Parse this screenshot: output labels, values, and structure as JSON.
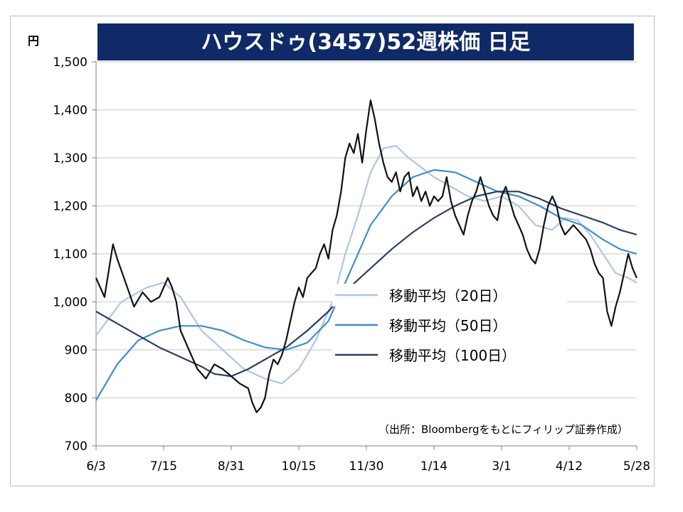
{
  "chart_data": {
    "type": "line",
    "title": "ハウスドゥ(3457)52週株価 日足",
    "y_unit": "円",
    "ylim": [
      700,
      1500
    ],
    "y_ticks": [
      {
        "value": 700,
        "label": "700"
      },
      {
        "value": 800,
        "label": "800"
      },
      {
        "value": 900,
        "label": "900"
      },
      {
        "value": 1000,
        "label": "1,000"
      },
      {
        "value": 1100,
        "label": "1,100"
      },
      {
        "value": 1200,
        "label": "1,200"
      },
      {
        "value": 1300,
        "label": "1,300"
      },
      {
        "value": 1400,
        "label": "1,400"
      },
      {
        "value": 1500,
        "label": "1,500"
      }
    ],
    "x_ticks": [
      "6/3",
      "7/15",
      "8/31",
      "10/15",
      "11/30",
      "1/14",
      "3/1",
      "4/12",
      "5/28"
    ],
    "source": "（出所：Bloombergをもとにフィリップ証券作成）",
    "grid": true,
    "legend_position": "bottom-right",
    "series": [
      {
        "name": "",
        "color": "#111111",
        "points": [
          [
            0,
            1050
          ],
          [
            2,
            1010
          ],
          [
            4,
            1120
          ],
          [
            5,
            1090
          ],
          [
            7,
            1040
          ],
          [
            9,
            990
          ],
          [
            11,
            1020
          ],
          [
            13,
            1000
          ],
          [
            15,
            1010
          ],
          [
            17,
            1050
          ],
          [
            18,
            1030
          ],
          [
            19,
            1000
          ],
          [
            20,
            940
          ],
          [
            22,
            900
          ],
          [
            24,
            860
          ],
          [
            26,
            840
          ],
          [
            28,
            870
          ],
          [
            30,
            860
          ],
          [
            32,
            845
          ],
          [
            34,
            830
          ],
          [
            36,
            820
          ],
          [
            37,
            790
          ],
          [
            38,
            770
          ],
          [
            39,
            780
          ],
          [
            40,
            800
          ],
          [
            41,
            850
          ],
          [
            42,
            880
          ],
          [
            43,
            870
          ],
          [
            44,
            890
          ],
          [
            45,
            920
          ],
          [
            46,
            960
          ],
          [
            47,
            1000
          ],
          [
            48,
            1030
          ],
          [
            49,
            1010
          ],
          [
            50,
            1050
          ],
          [
            51,
            1060
          ],
          [
            52,
            1070
          ],
          [
            53,
            1100
          ],
          [
            54,
            1120
          ],
          [
            55,
            1090
          ],
          [
            56,
            1150
          ],
          [
            57,
            1180
          ],
          [
            58,
            1230
          ],
          [
            59,
            1300
          ],
          [
            60,
            1330
          ],
          [
            61,
            1310
          ],
          [
            62,
            1350
          ],
          [
            63,
            1290
          ],
          [
            64,
            1360
          ],
          [
            65,
            1420
          ],
          [
            66,
            1380
          ],
          [
            67,
            1330
          ],
          [
            68,
            1290
          ],
          [
            69,
            1260
          ],
          [
            70,
            1250
          ],
          [
            71,
            1270
          ],
          [
            72,
            1230
          ],
          [
            73,
            1260
          ],
          [
            74,
            1270
          ],
          [
            75,
            1220
          ],
          [
            76,
            1240
          ],
          [
            77,
            1210
          ],
          [
            78,
            1230
          ],
          [
            79,
            1200
          ],
          [
            80,
            1220
          ],
          [
            81,
            1210
          ],
          [
            82,
            1220
          ],
          [
            83,
            1260
          ],
          [
            84,
            1210
          ],
          [
            85,
            1180
          ],
          [
            86,
            1160
          ],
          [
            87,
            1140
          ],
          [
            88,
            1180
          ],
          [
            89,
            1210
          ],
          [
            90,
            1230
          ],
          [
            91,
            1260
          ],
          [
            92,
            1230
          ],
          [
            93,
            1200
          ],
          [
            94,
            1180
          ],
          [
            95,
            1170
          ],
          [
            96,
            1220
          ],
          [
            97,
            1240
          ],
          [
            98,
            1210
          ],
          [
            99,
            1180
          ],
          [
            100,
            1160
          ],
          [
            101,
            1140
          ],
          [
            102,
            1110
          ],
          [
            103,
            1090
          ],
          [
            104,
            1080
          ],
          [
            105,
            1110
          ],
          [
            106,
            1160
          ],
          [
            107,
            1200
          ],
          [
            108,
            1220
          ],
          [
            109,
            1200
          ],
          [
            110,
            1160
          ],
          [
            111,
            1140
          ],
          [
            112,
            1150
          ],
          [
            113,
            1160
          ],
          [
            114,
            1150
          ],
          [
            115,
            1140
          ],
          [
            116,
            1130
          ],
          [
            117,
            1110
          ],
          [
            118,
            1080
          ],
          [
            119,
            1060
          ],
          [
            120,
            1050
          ],
          [
            121,
            980
          ],
          [
            122,
            950
          ],
          [
            123,
            990
          ],
          [
            124,
            1020
          ],
          [
            125,
            1060
          ],
          [
            126,
            1100
          ],
          [
            127,
            1070
          ],
          [
            128,
            1050
          ]
        ]
      },
      {
        "name": "移動平均（20日）",
        "color": "#aec6e6",
        "points": [
          [
            0,
            930
          ],
          [
            6,
            1000
          ],
          [
            12,
            1030
          ],
          [
            16,
            1040
          ],
          [
            20,
            1010
          ],
          [
            25,
            940
          ],
          [
            30,
            900
          ],
          [
            35,
            860
          ],
          [
            40,
            840
          ],
          [
            44,
            830
          ],
          [
            48,
            860
          ],
          [
            52,
            920
          ],
          [
            56,
            1000
          ],
          [
            59,
            1100
          ],
          [
            62,
            1180
          ],
          [
            65,
            1270
          ],
          [
            68,
            1320
          ],
          [
            71,
            1325
          ],
          [
            74,
            1300
          ],
          [
            77,
            1280
          ],
          [
            80,
            1260
          ],
          [
            84,
            1240
          ],
          [
            88,
            1220
          ],
          [
            92,
            1210
          ],
          [
            96,
            1220
          ],
          [
            100,
            1200
          ],
          [
            104,
            1160
          ],
          [
            108,
            1150
          ],
          [
            111,
            1175
          ],
          [
            114,
            1170
          ],
          [
            117,
            1140
          ],
          [
            120,
            1100
          ],
          [
            123,
            1060
          ],
          [
            126,
            1050
          ],
          [
            128,
            1040
          ]
        ]
      },
      {
        "name": "移動平均（50日）",
        "color": "#3d8fcf",
        "points": [
          [
            0,
            795
          ],
          [
            5,
            870
          ],
          [
            10,
            920
          ],
          [
            15,
            940
          ],
          [
            20,
            950
          ],
          [
            25,
            950
          ],
          [
            30,
            940
          ],
          [
            35,
            920
          ],
          [
            40,
            905
          ],
          [
            45,
            900
          ],
          [
            50,
            915
          ],
          [
            55,
            960
          ],
          [
            60,
            1060
          ],
          [
            65,
            1160
          ],
          [
            70,
            1220
          ],
          [
            75,
            1260
          ],
          [
            80,
            1275
          ],
          [
            85,
            1270
          ],
          [
            90,
            1250
          ],
          [
            95,
            1230
          ],
          [
            100,
            1220
          ],
          [
            105,
            1200
          ],
          [
            110,
            1175
          ],
          [
            115,
            1160
          ],
          [
            120,
            1130
          ],
          [
            124,
            1110
          ],
          [
            128,
            1100
          ]
        ]
      },
      {
        "name": "移動平均（100日）",
        "color": "#2b3f63",
        "points": [
          [
            0,
            980
          ],
          [
            5,
            955
          ],
          [
            10,
            930
          ],
          [
            15,
            905
          ],
          [
            20,
            885
          ],
          [
            25,
            865
          ],
          [
            28,
            850
          ],
          [
            32,
            845
          ],
          [
            36,
            860
          ],
          [
            40,
            880
          ],
          [
            45,
            905
          ],
          [
            50,
            940
          ],
          [
            55,
            980
          ],
          [
            60,
            1030
          ],
          [
            65,
            1070
          ],
          [
            70,
            1110
          ],
          [
            75,
            1145
          ],
          [
            80,
            1175
          ],
          [
            85,
            1200
          ],
          [
            90,
            1220
          ],
          [
            95,
            1230
          ],
          [
            100,
            1230
          ],
          [
            105,
            1215
          ],
          [
            110,
            1195
          ],
          [
            115,
            1180
          ],
          [
            120,
            1165
          ],
          [
            124,
            1150
          ],
          [
            128,
            1140
          ]
        ]
      }
    ]
  }
}
